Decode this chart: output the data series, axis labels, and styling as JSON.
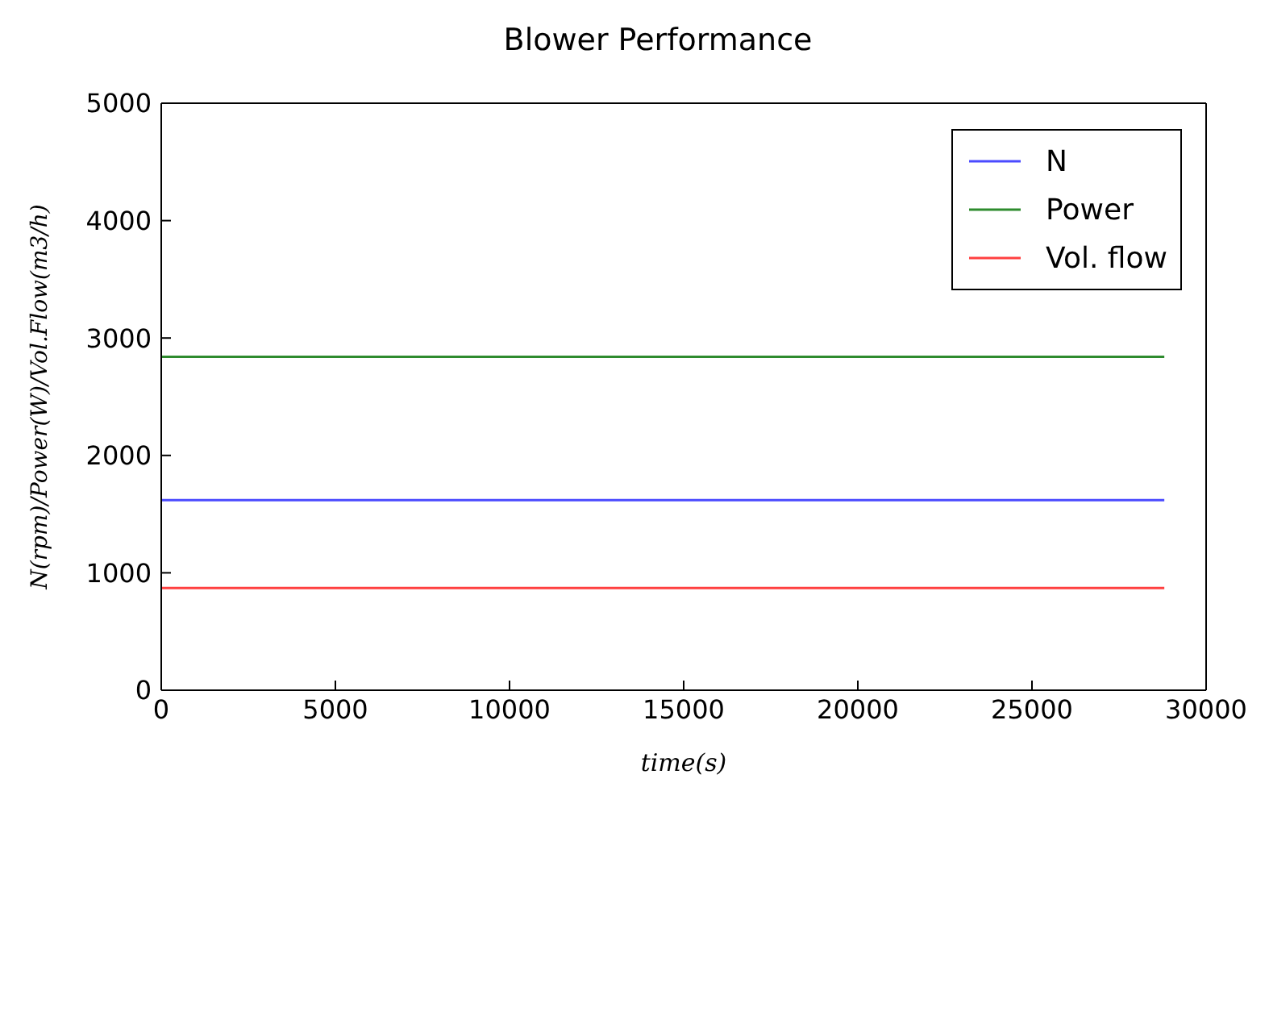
{
  "chart_data": {
    "type": "line",
    "title": "Blower Performance",
    "xlabel": "time(s)",
    "ylabel": "N(rpm)/Power(W)/Vol.Flow(m3/h)",
    "x": [
      0,
      28800
    ],
    "series": [
      {
        "name": "N",
        "color": "#4a4aff",
        "values": [
          1620,
          1620
        ]
      },
      {
        "name": "Power",
        "color": "#2e8b2e",
        "values": [
          2840,
          2840
        ]
      },
      {
        "name": "Vol. flow",
        "color": "#ff4040",
        "values": [
          870,
          870
        ]
      }
    ],
    "xlim": [
      0,
      30000
    ],
    "xticks": [
      0,
      5000,
      10000,
      15000,
      20000,
      25000,
      30000
    ],
    "ylim": [
      0,
      5000
    ],
    "yticks": [
      0,
      1000,
      2000,
      3000,
      4000,
      5000
    ],
    "legend": "top right",
    "grid": false,
    "marker": "none",
    "line_style": "solid"
  }
}
